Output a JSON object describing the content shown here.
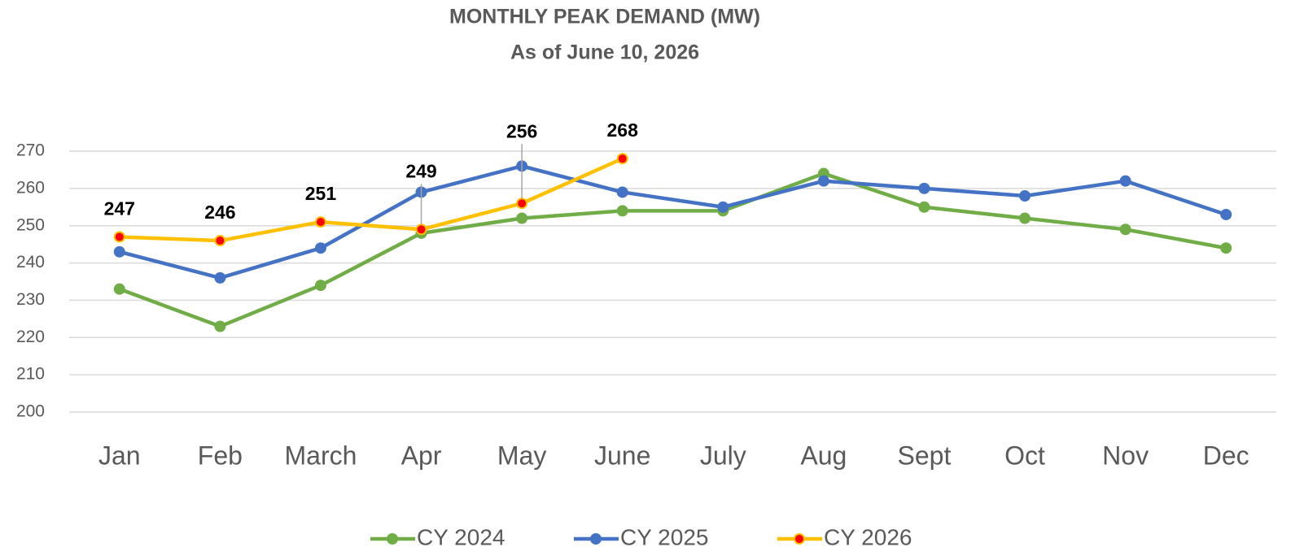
{
  "chart_data": {
    "type": "line",
    "title": "MONTHLY PEAK DEMAND (MW)",
    "subtitle": "As of June 10, 2026",
    "categories": [
      "Jan",
      "Feb",
      "March",
      "Apr",
      "May",
      "June",
      "July",
      "Aug",
      "Sept",
      "Oct",
      "Nov",
      "Dec"
    ],
    "series": [
      {
        "name": "CY 2024",
        "color": "#70ad47",
        "marker_color": "#70ad47",
        "values": [
          233,
          223,
          234,
          248,
          252,
          254,
          254,
          264,
          255,
          252,
          249,
          244
        ]
      },
      {
        "name": "CY 2025",
        "color": "#4472c4",
        "marker_color": "#4472c4",
        "values": [
          243,
          236,
          244,
          259,
          266,
          259,
          255,
          262,
          260,
          258,
          262,
          253
        ]
      },
      {
        "name": "CY 2026",
        "color": "#ffc000",
        "marker_color": "#ff0000",
        "values": [
          247,
          246,
          251,
          249,
          256,
          268,
          null,
          null,
          null,
          null,
          null,
          null
        ],
        "data_labels": true
      }
    ],
    "ylim": [
      200,
      270
    ],
    "yticks": [
      200,
      210,
      220,
      230,
      240,
      250,
      260,
      270
    ],
    "grid": true,
    "legend": "bottom"
  }
}
